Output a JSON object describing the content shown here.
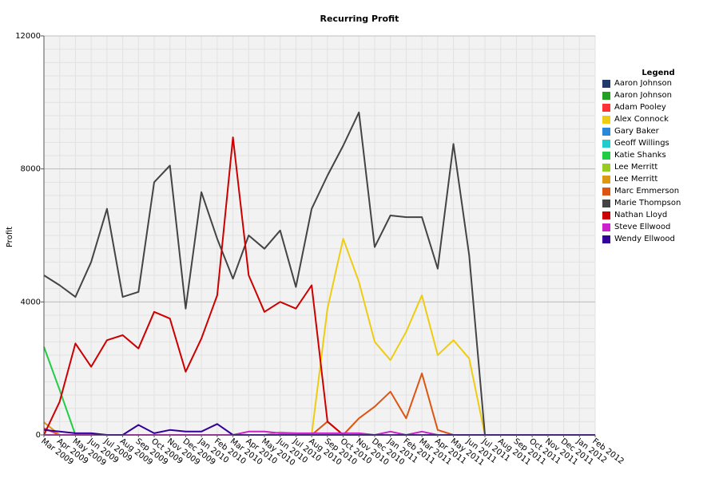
{
  "chart_data": {
    "type": "line",
    "title": "Recurring Profit",
    "xlabel": "",
    "ylabel": "Profit",
    "ylim": [
      0,
      12000
    ],
    "yticks": [
      0,
      4000,
      8000,
      12000
    ],
    "grid": true,
    "legend_title": "Legend",
    "legend_position": "right",
    "categories": [
      "Mar 2009",
      "Apr 2009",
      "May 2009",
      "Jun 2009",
      "Jul 2009",
      "Aug 2009",
      "Sep 2009",
      "Oct 2009",
      "Nov 2009",
      "Dec 2009",
      "Jan 2010",
      "Feb 2010",
      "Mar 2010",
      "Apr 2010",
      "May 2010",
      "Jun 2010",
      "Jul 2010",
      "Aug 2010",
      "Sep 2010",
      "Oct 2010",
      "Nov 2010",
      "Dec 2010",
      "Jan 2011",
      "Feb 2011",
      "Mar 2011",
      "Apr 2011",
      "May 2011",
      "Jun 2011",
      "Jul 2011",
      "Aug 2011",
      "Sep 2011",
      "Oct 2011",
      "Nov 2011",
      "Dec 2011",
      "Jan 2012",
      "Feb 2012"
    ],
    "series": [
      {
        "name": "Aaron Johnson",
        "color": "#1f3a6b",
        "values": [
          0,
          0,
          0,
          0,
          0,
          0,
          0,
          0,
          0,
          0,
          0,
          0,
          0,
          0,
          0,
          0,
          0,
          0,
          0,
          0,
          0,
          0,
          0,
          0,
          0,
          0,
          0,
          0,
          0,
          0,
          0,
          0,
          0,
          0,
          0,
          0
        ]
      },
      {
        "name": "Aaron Johnson",
        "color": "#23a023",
        "values": [
          0,
          0,
          0,
          0,
          0,
          0,
          0,
          0,
          0,
          0,
          0,
          0,
          0,
          0,
          0,
          0,
          0,
          0,
          0,
          0,
          0,
          0,
          0,
          0,
          0,
          0,
          0,
          0,
          0,
          0,
          0,
          0,
          0,
          0,
          0,
          0
        ]
      },
      {
        "name": "Adam Pooley",
        "color": "#ff3333",
        "values": [
          200,
          0,
          0,
          0,
          0,
          0,
          0,
          0,
          0,
          0,
          0,
          0,
          0,
          0,
          0,
          0,
          0,
          0,
          0,
          0,
          0,
          0,
          0,
          0,
          0,
          0,
          0,
          0,
          0,
          0,
          0,
          0,
          0,
          0,
          0,
          0
        ]
      },
      {
        "name": "Alex Connock",
        "color": "#eecc11",
        "values": [
          0,
          0,
          0,
          0,
          0,
          0,
          0,
          0,
          0,
          0,
          0,
          0,
          0,
          0,
          0,
          0,
          0,
          0,
          3800,
          5900,
          4600,
          2800,
          2250,
          3100,
          4200,
          2400,
          2850,
          2300,
          0,
          0,
          0,
          0,
          0,
          0,
          0,
          0
        ]
      },
      {
        "name": "Gary Baker",
        "color": "#2a88d8",
        "values": [
          0,
          0,
          0,
          0,
          0,
          0,
          0,
          0,
          0,
          0,
          0,
          0,
          0,
          0,
          0,
          0,
          0,
          0,
          0,
          0,
          0,
          0,
          0,
          0,
          0,
          0,
          0,
          0,
          0,
          0,
          0,
          0,
          0,
          0,
          0,
          0
        ]
      },
      {
        "name": "Geoff Willings",
        "color": "#22cccc",
        "values": [
          0,
          0,
          0,
          0,
          0,
          0,
          0,
          0,
          0,
          0,
          0,
          0,
          0,
          0,
          0,
          0,
          0,
          0,
          0,
          0,
          0,
          0,
          0,
          0,
          0,
          0,
          0,
          0,
          0,
          0,
          0,
          0,
          0,
          0,
          0,
          0
        ]
      },
      {
        "name": "Katie Shanks",
        "color": "#22cc44",
        "values": [
          2650,
          1350,
          0,
          0,
          0,
          0,
          0,
          0,
          0,
          0,
          0,
          0,
          0,
          0,
          0,
          0,
          0,
          0,
          0,
          0,
          0,
          0,
          0,
          0,
          0,
          0,
          0,
          0,
          0,
          0,
          0,
          0,
          0,
          0,
          0,
          0
        ]
      },
      {
        "name": "Lee Merritt",
        "color": "#99cc22",
        "values": [
          0,
          0,
          0,
          0,
          0,
          0,
          0,
          0,
          0,
          0,
          0,
          0,
          0,
          0,
          0,
          0,
          0,
          0,
          0,
          0,
          0,
          0,
          0,
          0,
          0,
          0,
          0,
          0,
          0,
          0,
          0,
          0,
          0,
          0,
          0,
          0
        ]
      },
      {
        "name": "Lee Merritt",
        "color": "#dd9911",
        "values": [
          380,
          0,
          0,
          0,
          0,
          0,
          0,
          0,
          0,
          0,
          0,
          0,
          0,
          0,
          0,
          80,
          50,
          0,
          0,
          0,
          0,
          0,
          0,
          0,
          0,
          0,
          0,
          0,
          0,
          0,
          0,
          0,
          0,
          0,
          0,
          0
        ]
      },
      {
        "name": "Marc Emmerson",
        "color": "#dd5511",
        "values": [
          0,
          0,
          0,
          0,
          0,
          0,
          0,
          0,
          0,
          0,
          0,
          0,
          0,
          0,
          0,
          0,
          0,
          0,
          400,
          0,
          500,
          850,
          1300,
          500,
          1850,
          150,
          0,
          0,
          0,
          0,
          0,
          0,
          0,
          0,
          0,
          0
        ]
      },
      {
        "name": "Marie Thompson",
        "color": "#444444",
        "values": [
          4800,
          4500,
          4150,
          5200,
          6800,
          4150,
          4300,
          7600,
          8100,
          3800,
          7300,
          5900,
          4700,
          6000,
          5600,
          6150,
          4450,
          6800,
          7800,
          8700,
          9700,
          5650,
          6600,
          6550,
          6550,
          5000,
          8750,
          5400,
          0,
          0,
          0,
          0,
          0,
          0,
          0,
          0
        ]
      },
      {
        "name": "Nathan Lloyd",
        "color": "#cc0000",
        "values": [
          0,
          1000,
          2750,
          2050,
          2850,
          3000,
          2600,
          3700,
          3500,
          1900,
          2900,
          4200,
          8950,
          4800,
          3700,
          4000,
          3800,
          4500,
          400,
          0,
          0,
          0,
          0,
          0,
          0,
          0,
          0,
          0,
          0,
          0,
          0,
          0,
          0,
          0,
          0,
          0
        ]
      },
      {
        "name": "Steve Ellwood",
        "color": "#cc22cc",
        "values": [
          0,
          0,
          0,
          0,
          0,
          0,
          0,
          0,
          0,
          0,
          0,
          0,
          0,
          100,
          100,
          50,
          50,
          50,
          50,
          50,
          50,
          0,
          100,
          0,
          100,
          0,
          0,
          0,
          0,
          0,
          0,
          0,
          0,
          0,
          0,
          0
        ]
      },
      {
        "name": "Wendy Ellwood",
        "color": "#330099",
        "values": [
          150,
          100,
          50,
          50,
          0,
          0,
          300,
          50,
          150,
          100,
          100,
          330,
          0,
          0,
          0,
          0,
          0,
          0,
          0,
          0,
          0,
          0,
          0,
          0,
          0,
          0,
          0,
          0,
          0,
          0,
          0,
          0,
          0,
          0,
          0,
          0
        ]
      }
    ]
  }
}
